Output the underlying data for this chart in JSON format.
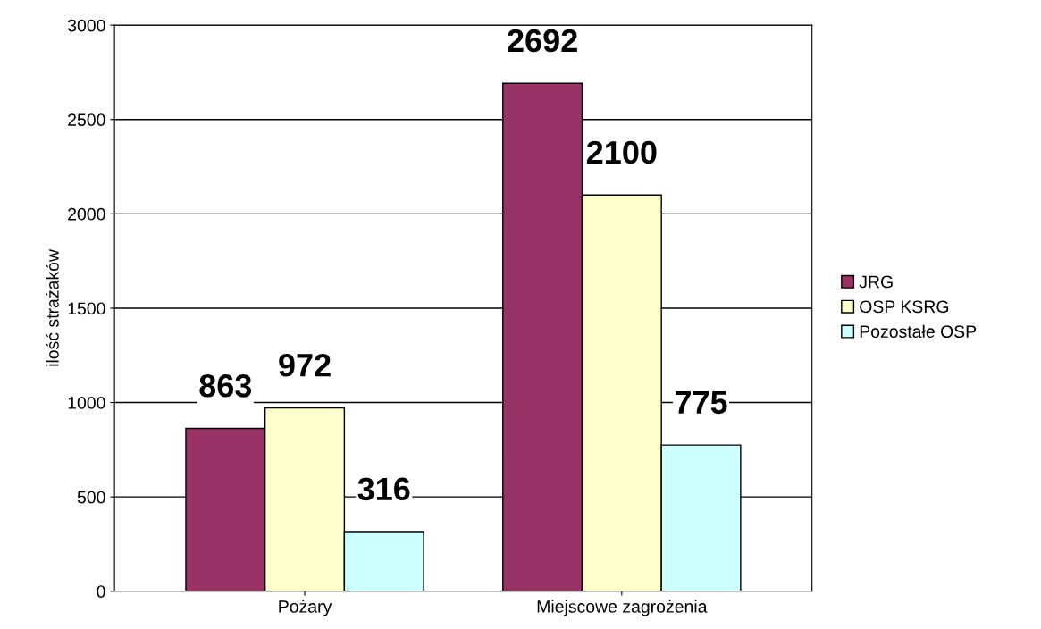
{
  "chart_data": {
    "type": "bar",
    "ylabel": "ilość strażaków",
    "categories": [
      "Pożary",
      "Miejscowe zagrożenia"
    ],
    "series": [
      {
        "name": "JRG",
        "color": "#993366",
        "values": [
          863,
          2692
        ]
      },
      {
        "name": "OSP KSRG",
        "color": "#ffffcc",
        "values": [
          972,
          2100
        ]
      },
      {
        "name": "Pozostałe OSP",
        "color": "#ccffff",
        "values": [
          316,
          775
        ]
      }
    ],
    "ylim": [
      0,
      3000
    ],
    "yticks": [
      0,
      500,
      1000,
      1500,
      2000,
      2500,
      3000
    ],
    "grid": "y",
    "legend": "right",
    "data_labels": true
  }
}
